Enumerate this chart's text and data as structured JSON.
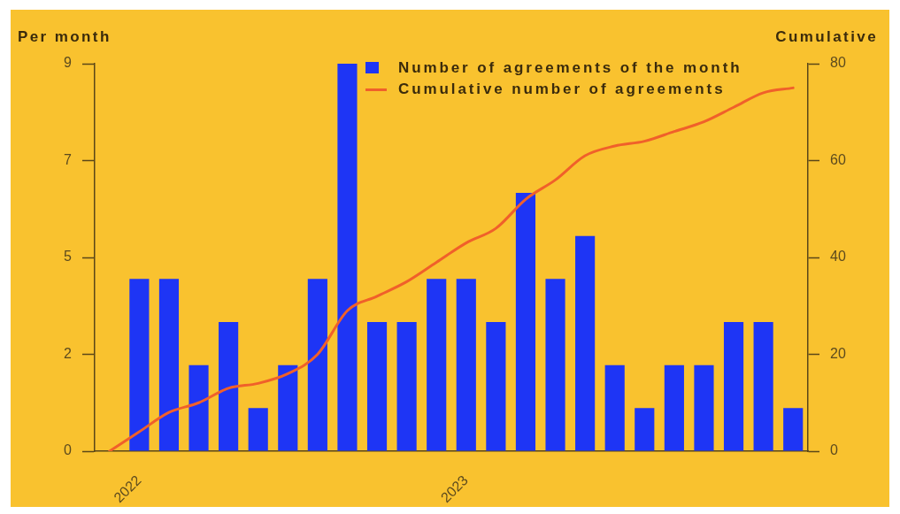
{
  "chart_data": {
    "type": "bar",
    "ylabel": "Per month",
    "y2label": "Cumulative",
    "categories": [
      null,
      "2022",
      null,
      null,
      null,
      null,
      null,
      null,
      null,
      null,
      null,
      null,
      "2023",
      null,
      null,
      null,
      null,
      null,
      null,
      null,
      null,
      null,
      null,
      null
    ],
    "series": [
      {
        "name": "Number of agreements of the month",
        "color": "#1e35f5",
        "values": [
          null,
          4,
          4,
          2,
          3,
          1,
          2,
          4,
          9,
          3,
          3,
          4,
          4,
          3,
          6,
          4,
          5,
          2,
          1,
          2,
          2,
          3,
          3,
          1
        ]
      },
      {
        "name": "Cumulative number of agreements",
        "type": "line",
        "axis": "y2",
        "color": "#f0602a",
        "values": [
          0,
          4,
          8,
          10,
          13,
          14,
          16,
          20,
          29,
          32,
          35,
          39,
          43,
          46,
          52,
          56,
          61,
          63,
          64,
          66,
          68,
          71,
          74,
          75
        ]
      }
    ],
    "ylim": [
      0,
      9
    ],
    "yticks": [
      0,
      {
        "value": 2.25,
        "label": "2"
      },
      {
        "value": 4.5,
        "label": "5"
      },
      {
        "value": 6.75,
        "label": "7"
      },
      9
    ],
    "y2lim": [
      0,
      80
    ],
    "y2ticks": [
      0,
      20,
      40,
      60,
      80
    ],
    "grid": false,
    "legend": "top"
  }
}
